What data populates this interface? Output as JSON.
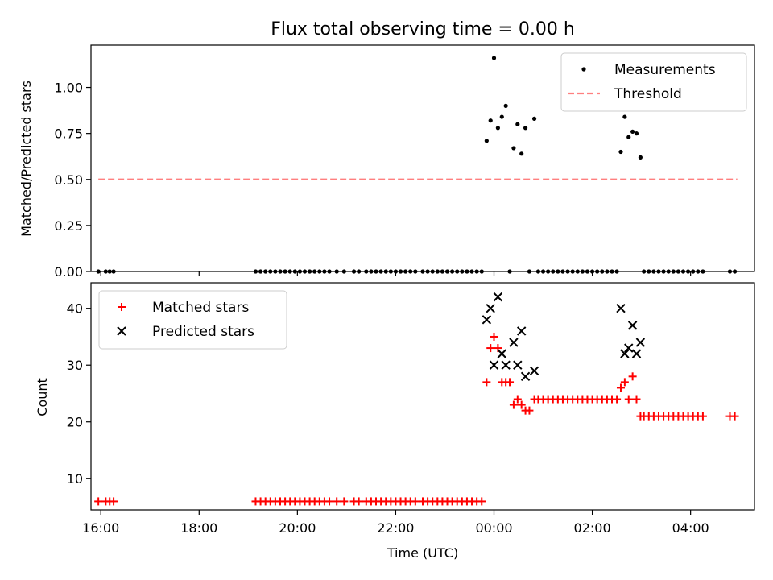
{
  "chart_data": [
    {
      "type": "scatter",
      "title": "Flux total observing time = 0.00 h",
      "xlabel": "",
      "ylabel": "Matched/Predicted stars",
      "xlim": [
        -0.2,
        13.3
      ],
      "ylim": [
        0,
        1.23
      ],
      "x_ticks": [
        0,
        2,
        4,
        6,
        8,
        10,
        12
      ],
      "y_ticks": [
        {
          "value": 0.0,
          "label": "0.00"
        },
        {
          "value": 0.25,
          "label": "0.25"
        },
        {
          "value": 0.5,
          "label": "0.50"
        },
        {
          "value": 0.75,
          "label": "0.75"
        },
        {
          "value": 1.0,
          "label": "1.00"
        }
      ],
      "legend_position": "top-right",
      "series": [
        {
          "name": "Measurements",
          "marker": "dot",
          "color": "#000000",
          "points": [
            [
              -0.05,
              0.0
            ],
            [
              0.1,
              0.0
            ],
            [
              0.18,
              0.0
            ],
            [
              0.26,
              0.0
            ],
            [
              3.15,
              0.0
            ],
            [
              3.25,
              0.0
            ],
            [
              3.35,
              0.0
            ],
            [
              3.45,
              0.0
            ],
            [
              3.55,
              0.0
            ],
            [
              3.65,
              0.0
            ],
            [
              3.75,
              0.0
            ],
            [
              3.85,
              0.0
            ],
            [
              3.95,
              0.0
            ],
            [
              4.05,
              0.0
            ],
            [
              4.15,
              0.0
            ],
            [
              4.25,
              0.0
            ],
            [
              4.35,
              0.0
            ],
            [
              4.45,
              0.0
            ],
            [
              4.55,
              0.0
            ],
            [
              4.65,
              0.0
            ],
            [
              4.8,
              0.0
            ],
            [
              4.95,
              0.0
            ],
            [
              5.15,
              0.0
            ],
            [
              5.25,
              0.0
            ],
            [
              5.4,
              0.0
            ],
            [
              5.5,
              0.0
            ],
            [
              5.6,
              0.0
            ],
            [
              5.7,
              0.0
            ],
            [
              5.8,
              0.0
            ],
            [
              5.9,
              0.0
            ],
            [
              6.0,
              0.0
            ],
            [
              6.1,
              0.0
            ],
            [
              6.2,
              0.0
            ],
            [
              6.3,
              0.0
            ],
            [
              6.4,
              0.0
            ],
            [
              6.55,
              0.0
            ],
            [
              6.65,
              0.0
            ],
            [
              6.75,
              0.0
            ],
            [
              6.85,
              0.0
            ],
            [
              6.95,
              0.0
            ],
            [
              7.05,
              0.0
            ],
            [
              7.15,
              0.0
            ],
            [
              7.25,
              0.0
            ],
            [
              7.35,
              0.0
            ],
            [
              7.45,
              0.0
            ],
            [
              7.55,
              0.0
            ],
            [
              7.65,
              0.0
            ],
            [
              7.75,
              0.0
            ],
            [
              7.85,
              0.71
            ],
            [
              7.93,
              0.82
            ],
            [
              8.0,
              1.16
            ],
            [
              8.08,
              0.78
            ],
            [
              8.16,
              0.84
            ],
            [
              8.24,
              0.9
            ],
            [
              8.32,
              0.0
            ],
            [
              8.4,
              0.67
            ],
            [
              8.48,
              0.8
            ],
            [
              8.56,
              0.64
            ],
            [
              8.64,
              0.78
            ],
            [
              8.72,
              0.0
            ],
            [
              8.82,
              0.83
            ],
            [
              8.9,
              0.0
            ],
            [
              9.0,
              0.0
            ],
            [
              9.1,
              0.0
            ],
            [
              9.2,
              0.0
            ],
            [
              9.3,
              0.0
            ],
            [
              9.4,
              0.0
            ],
            [
              9.5,
              0.0
            ],
            [
              9.6,
              0.0
            ],
            [
              9.7,
              0.0
            ],
            [
              9.8,
              0.0
            ],
            [
              9.9,
              0.0
            ],
            [
              10.0,
              0.0
            ],
            [
              10.1,
              0.0
            ],
            [
              10.2,
              0.0
            ],
            [
              10.3,
              0.0
            ],
            [
              10.4,
              0.0
            ],
            [
              10.5,
              0.0
            ],
            [
              10.58,
              0.65
            ],
            [
              10.66,
              0.84
            ],
            [
              10.74,
              0.73
            ],
            [
              10.82,
              0.76
            ],
            [
              10.9,
              0.75
            ],
            [
              10.98,
              0.62
            ],
            [
              11.05,
              0.0
            ],
            [
              11.15,
              0.0
            ],
            [
              11.25,
              0.0
            ],
            [
              11.35,
              0.0
            ],
            [
              11.45,
              0.0
            ],
            [
              11.55,
              0.0
            ],
            [
              11.65,
              0.0
            ],
            [
              11.75,
              0.0
            ],
            [
              11.85,
              0.0
            ],
            [
              11.95,
              0.0
            ],
            [
              12.05,
              0.0
            ],
            [
              12.15,
              0.0
            ],
            [
              12.25,
              0.0
            ],
            [
              12.8,
              0.0
            ],
            [
              12.9,
              0.0
            ]
          ]
        },
        {
          "name": "Threshold",
          "marker": "dashed-line",
          "color": "#ff7f7f",
          "points": [
            [
              -0.05,
              0.5
            ],
            [
              12.95,
              0.5
            ]
          ]
        }
      ]
    },
    {
      "type": "scatter",
      "title": "",
      "xlabel": "Time (UTC)",
      "ylabel": "Count",
      "xlim": [
        -0.2,
        13.3
      ],
      "ylim": [
        4.5,
        44.5
      ],
      "x_ticks": [
        {
          "value": 0,
          "label": "16:00"
        },
        {
          "value": 2,
          "label": "18:00"
        },
        {
          "value": 4,
          "label": "20:00"
        },
        {
          "value": 6,
          "label": "22:00"
        },
        {
          "value": 8,
          "label": "00:00"
        },
        {
          "value": 10,
          "label": "02:00"
        },
        {
          "value": 12,
          "label": "04:00"
        }
      ],
      "y_ticks": [
        {
          "value": 10,
          "label": "10"
        },
        {
          "value": 20,
          "label": "20"
        },
        {
          "value": 30,
          "label": "30"
        },
        {
          "value": 40,
          "label": "40"
        }
      ],
      "legend_position": "top-left",
      "series": [
        {
          "name": "Matched stars",
          "marker": "plus",
          "color": "#ff0000",
          "points": [
            [
              -0.05,
              6
            ],
            [
              0.1,
              6
            ],
            [
              0.18,
              6
            ],
            [
              0.26,
              6
            ],
            [
              3.15,
              6
            ],
            [
              3.25,
              6
            ],
            [
              3.35,
              6
            ],
            [
              3.45,
              6
            ],
            [
              3.55,
              6
            ],
            [
              3.65,
              6
            ],
            [
              3.75,
              6
            ],
            [
              3.85,
              6
            ],
            [
              3.95,
              6
            ],
            [
              4.05,
              6
            ],
            [
              4.15,
              6
            ],
            [
              4.25,
              6
            ],
            [
              4.35,
              6
            ],
            [
              4.45,
              6
            ],
            [
              4.55,
              6
            ],
            [
              4.65,
              6
            ],
            [
              4.8,
              6
            ],
            [
              4.95,
              6
            ],
            [
              5.15,
              6
            ],
            [
              5.25,
              6
            ],
            [
              5.4,
              6
            ],
            [
              5.5,
              6
            ],
            [
              5.6,
              6
            ],
            [
              5.7,
              6
            ],
            [
              5.8,
              6
            ],
            [
              5.9,
              6
            ],
            [
              6.0,
              6
            ],
            [
              6.1,
              6
            ],
            [
              6.2,
              6
            ],
            [
              6.3,
              6
            ],
            [
              6.4,
              6
            ],
            [
              6.55,
              6
            ],
            [
              6.65,
              6
            ],
            [
              6.75,
              6
            ],
            [
              6.85,
              6
            ],
            [
              6.95,
              6
            ],
            [
              7.05,
              6
            ],
            [
              7.15,
              6
            ],
            [
              7.25,
              6
            ],
            [
              7.35,
              6
            ],
            [
              7.45,
              6
            ],
            [
              7.55,
              6
            ],
            [
              7.65,
              6
            ],
            [
              7.75,
              6
            ],
            [
              7.85,
              27
            ],
            [
              7.93,
              33
            ],
            [
              8.0,
              35
            ],
            [
              8.08,
              33
            ],
            [
              8.16,
              27
            ],
            [
              8.24,
              27
            ],
            [
              8.32,
              27
            ],
            [
              8.4,
              23
            ],
            [
              8.48,
              24
            ],
            [
              8.56,
              23
            ],
            [
              8.64,
              22
            ],
            [
              8.72,
              22
            ],
            [
              8.82,
              24
            ],
            [
              8.9,
              24
            ],
            [
              9.0,
              24
            ],
            [
              9.1,
              24
            ],
            [
              9.2,
              24
            ],
            [
              9.3,
              24
            ],
            [
              9.4,
              24
            ],
            [
              9.5,
              24
            ],
            [
              9.6,
              24
            ],
            [
              9.7,
              24
            ],
            [
              9.8,
              24
            ],
            [
              9.9,
              24
            ],
            [
              10.0,
              24
            ],
            [
              10.1,
              24
            ],
            [
              10.2,
              24
            ],
            [
              10.3,
              24
            ],
            [
              10.4,
              24
            ],
            [
              10.5,
              24
            ],
            [
              10.58,
              26
            ],
            [
              10.66,
              27
            ],
            [
              10.74,
              24
            ],
            [
              10.82,
              28
            ],
            [
              10.9,
              24
            ],
            [
              10.98,
              21
            ],
            [
              11.05,
              21
            ],
            [
              11.15,
              21
            ],
            [
              11.25,
              21
            ],
            [
              11.35,
              21
            ],
            [
              11.45,
              21
            ],
            [
              11.55,
              21
            ],
            [
              11.65,
              21
            ],
            [
              11.75,
              21
            ],
            [
              11.85,
              21
            ],
            [
              11.95,
              21
            ],
            [
              12.05,
              21
            ],
            [
              12.15,
              21
            ],
            [
              12.25,
              21
            ],
            [
              12.8,
              21
            ],
            [
              12.9,
              21
            ]
          ]
        },
        {
          "name": "Predicted stars",
          "marker": "x",
          "color": "#000000",
          "points": [
            [
              7.85,
              38
            ],
            [
              7.93,
              40
            ],
            [
              8.0,
              30
            ],
            [
              8.08,
              42
            ],
            [
              8.16,
              32
            ],
            [
              8.24,
              30
            ],
            [
              8.4,
              34
            ],
            [
              8.48,
              30
            ],
            [
              8.56,
              36
            ],
            [
              8.64,
              28
            ],
            [
              8.82,
              29
            ],
            [
              10.58,
              40
            ],
            [
              10.66,
              32
            ],
            [
              10.74,
              33
            ],
            [
              10.82,
              37
            ],
            [
              10.9,
              32
            ],
            [
              10.98,
              34
            ]
          ]
        }
      ]
    }
  ]
}
